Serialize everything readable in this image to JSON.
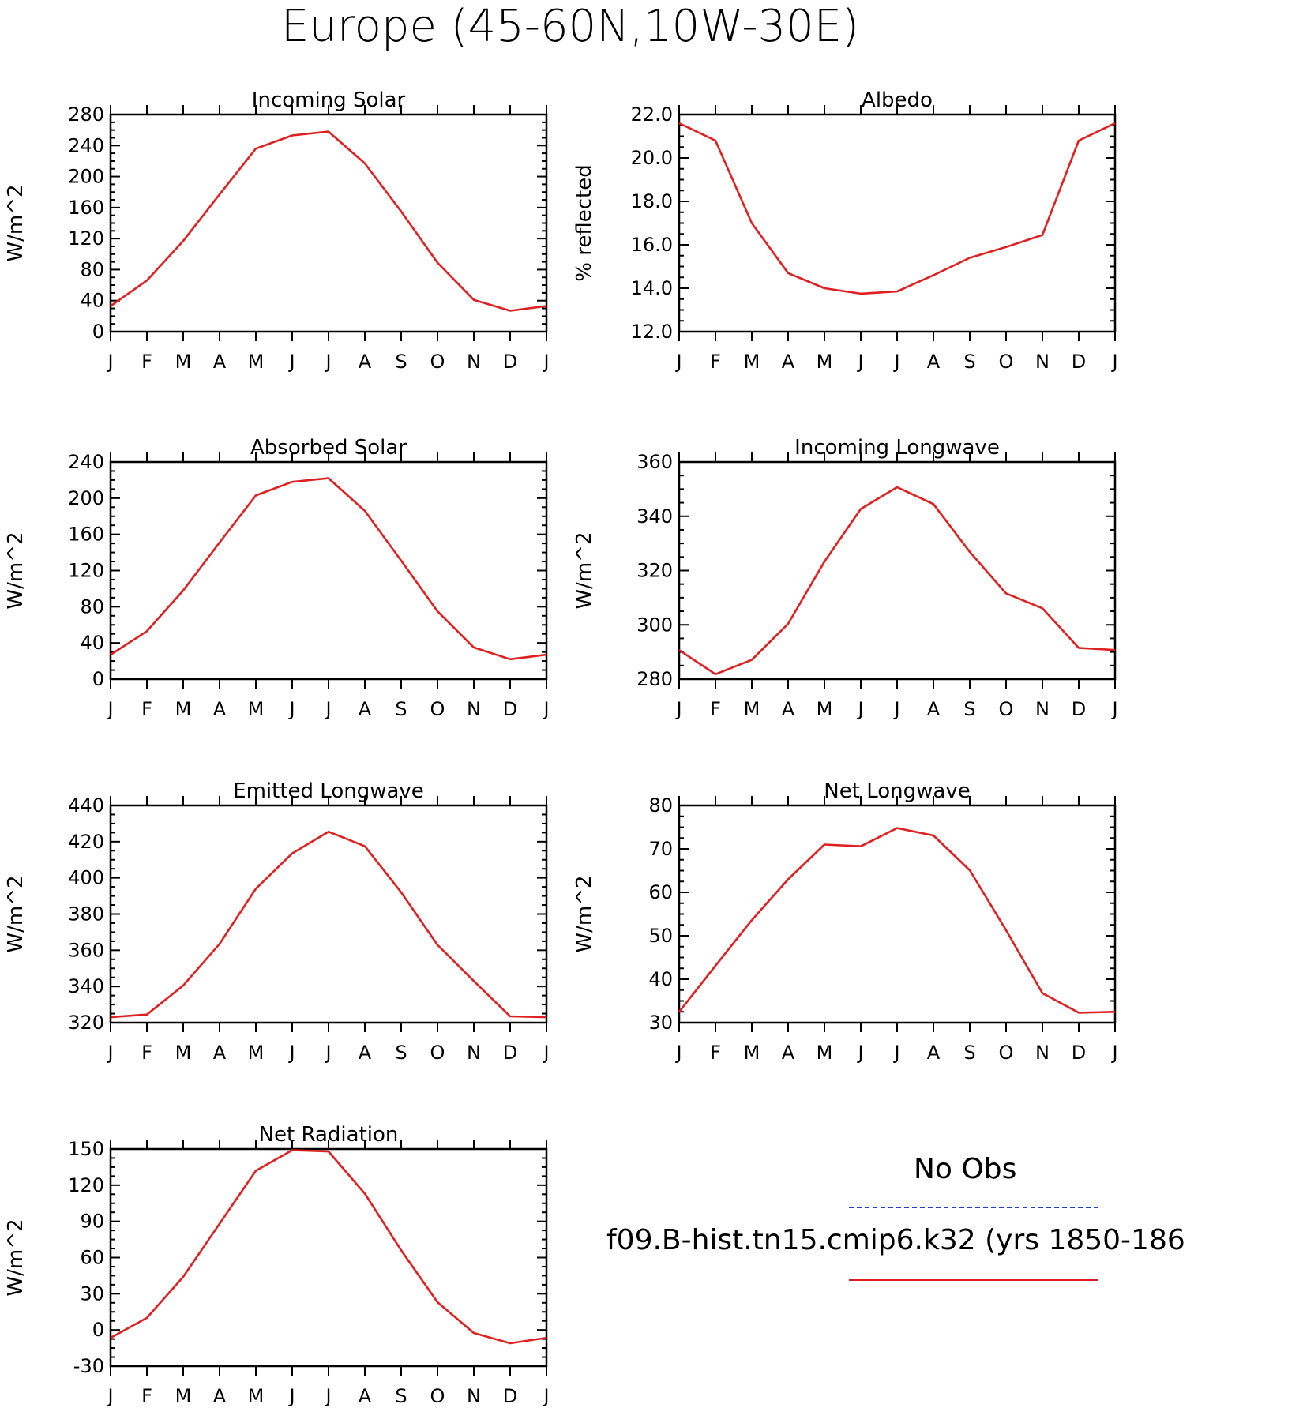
{
  "title": "Europe (45-60N,10W-30E)",
  "month_labels": [
    "J",
    "F",
    "M",
    "A",
    "M",
    "J",
    "J",
    "A",
    "S",
    "O",
    "N",
    "D",
    "J"
  ],
  "legend": {
    "obs_label": "No Obs",
    "model_label": "f09.B-hist.tn15.cmip6.k32 (yrs 1850-186",
    "obs_color": "#1a3fd6",
    "model_color": "#e02020"
  },
  "chart_data": [
    {
      "type": "line",
      "title": "Incoming Solar",
      "ylabel": "W/m^2",
      "ylim": [
        0,
        280
      ],
      "yticks": [
        0,
        40,
        80,
        120,
        160,
        200,
        240,
        280
      ],
      "ytick_labels": [
        "0",
        "40",
        "80",
        "120",
        "160",
        "200",
        "240",
        "280"
      ],
      "x": [
        "J",
        "F",
        "M",
        "A",
        "M",
        "J",
        "J",
        "A",
        "S",
        "O",
        "N",
        "D",
        "J"
      ],
      "series": [
        {
          "values": [
            33,
            66,
            117,
            177,
            236,
            253,
            258,
            217,
            155,
            89,
            41,
            27,
            33
          ]
        }
      ]
    },
    {
      "type": "line",
      "title": "Albedo",
      "ylabel": "% reflected",
      "ylim": [
        12,
        22
      ],
      "yticks": [
        12,
        14,
        16,
        18,
        20,
        22
      ],
      "ytick_labels": [
        "12.0",
        "14.0",
        "16.0",
        "18.0",
        "20.0",
        "22.0"
      ],
      "x": [
        "J",
        "F",
        "M",
        "A",
        "M",
        "J",
        "J",
        "A",
        "S",
        "O",
        "N",
        "D",
        "J"
      ],
      "series": [
        {
          "values": [
            21.6,
            20.8,
            17.0,
            14.7,
            14.0,
            13.75,
            13.85,
            14.6,
            15.4,
            15.9,
            16.45,
            20.8,
            21.6
          ]
        }
      ]
    },
    {
      "type": "line",
      "title": "Absorbed Solar",
      "ylabel": "W/m^2",
      "ylim": [
        0,
        240
      ],
      "yticks": [
        0,
        40,
        80,
        120,
        160,
        200,
        240
      ],
      "ytick_labels": [
        "0",
        "40",
        "80",
        "120",
        "160",
        "200",
        "240"
      ],
      "x": [
        "J",
        "F",
        "M",
        "A",
        "M",
        "J",
        "J",
        "A",
        "S",
        "O",
        "N",
        "D",
        "J"
      ],
      "series": [
        {
          "values": [
            27,
            53,
            98,
            151,
            203,
            218,
            222,
            186,
            131,
            75,
            35,
            22,
            27
          ]
        }
      ]
    },
    {
      "type": "line",
      "title": "Incoming Longwave",
      "ylabel": "W/m^2",
      "ylim": [
        280,
        360
      ],
      "yticks": [
        280,
        300,
        320,
        340,
        360
      ],
      "ytick_labels": [
        "280",
        "300",
        "320",
        "340",
        "360"
      ],
      "x": [
        "J",
        "F",
        "M",
        "A",
        "M",
        "J",
        "J",
        "A",
        "S",
        "O",
        "N",
        "D",
        "J"
      ],
      "series": [
        {
          "values": [
            290.7,
            281.8,
            287.1,
            300.4,
            323.3,
            342.7,
            350.7,
            344.5,
            326.9,
            311.6,
            306.1,
            291.5,
            290.7
          ]
        }
      ]
    },
    {
      "type": "line",
      "title": "Emitted Longwave",
      "ylabel": "W/m^2",
      "ylim": [
        320,
        440
      ],
      "yticks": [
        320,
        340,
        360,
        380,
        400,
        420,
        440
      ],
      "ytick_labels": [
        "320",
        "340",
        "360",
        "380",
        "400",
        "420",
        "440"
      ],
      "x": [
        "J",
        "F",
        "M",
        "A",
        "M",
        "J",
        "J",
        "A",
        "S",
        "O",
        "N",
        "D",
        "J"
      ],
      "series": [
        {
          "values": [
            323,
            324.5,
            340.5,
            363.5,
            394,
            413.5,
            425.5,
            417.5,
            392,
            363,
            343,
            323.5,
            323
          ]
        }
      ]
    },
    {
      "type": "line",
      "title": "Net Longwave",
      "ylabel": "W/m^2",
      "ylim": [
        30,
        80
      ],
      "yticks": [
        30,
        40,
        50,
        60,
        70,
        80
      ],
      "ytick_labels": [
        "30",
        "40",
        "50",
        "60",
        "70",
        "80"
      ],
      "x": [
        "J",
        "F",
        "M",
        "A",
        "M",
        "J",
        "J",
        "A",
        "S",
        "O",
        "N",
        "D",
        "J"
      ],
      "series": [
        {
          "values": [
            32.5,
            43.1,
            53.6,
            63.0,
            71.0,
            70.6,
            74.8,
            73.1,
            65.1,
            51.3,
            36.8,
            32.3,
            32.5
          ]
        }
      ]
    },
    {
      "type": "line",
      "title": "Net Radiation",
      "ylabel": "W/m^2",
      "ylim": [
        -30,
        150
      ],
      "yticks": [
        -30,
        0,
        30,
        60,
        90,
        120,
        150
      ],
      "ytick_labels": [
        "-30",
        "0",
        "30",
        "60",
        "90",
        "120",
        "150"
      ],
      "x": [
        "J",
        "F",
        "M",
        "A",
        "M",
        "J",
        "J",
        "A",
        "S",
        "O",
        "N",
        "D",
        "J"
      ],
      "series": [
        {
          "values": [
            -6.5,
            10,
            44,
            88,
            132,
            149,
            148,
            113,
            66,
            23,
            -2.5,
            -11,
            -6.5
          ]
        }
      ]
    }
  ]
}
